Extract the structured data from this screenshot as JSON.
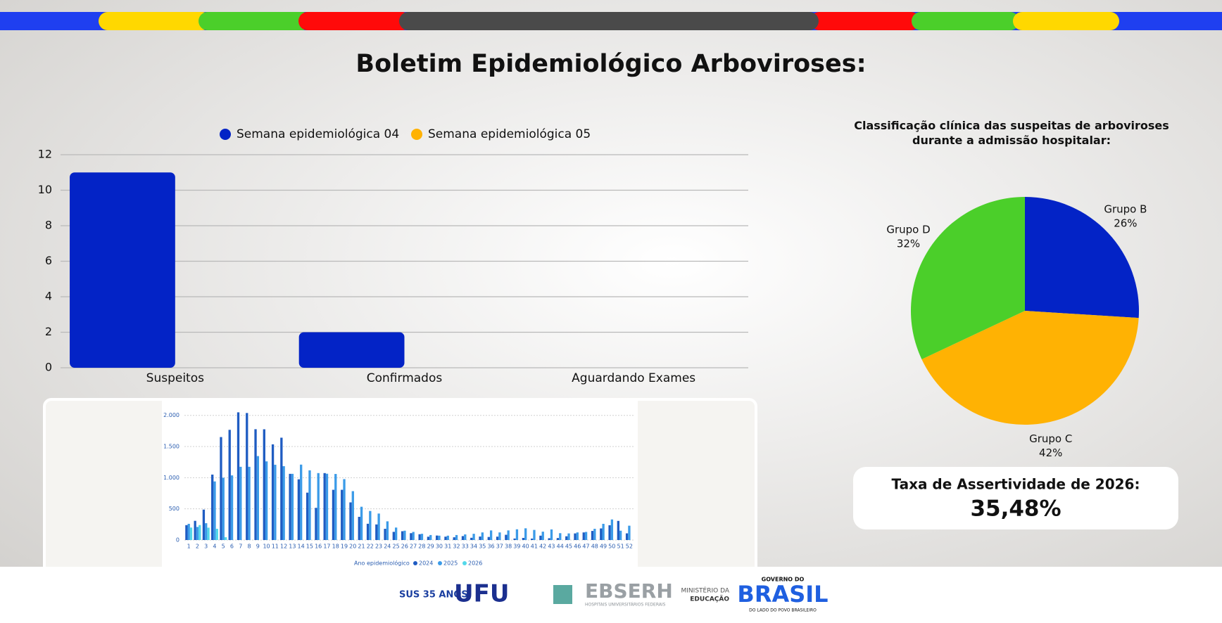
{
  "page": {
    "title": "Boletim Epidemiológico Arboviroses:",
    "card_label": "Taxa de Assertividade de 2026:",
    "card_value": "35,48%"
  },
  "chart_data": [
    {
      "type": "bar",
      "categories": [
        "Suspeitos",
        "Confirmados",
        "Aguardando Exames"
      ],
      "series": [
        {
          "name": "Semana epidemiológica 04",
          "color": "#0323c6",
          "values": [
            11,
            2,
            0
          ]
        },
        {
          "name": "Semana epidemiológica 05",
          "color": "#ffb203",
          "values": [
            0,
            0,
            0
          ]
        }
      ],
      "ylim": [
        0,
        12
      ],
      "yticks": [
        0,
        2,
        4,
        6,
        8,
        10,
        12
      ],
      "grid": true,
      "legend": "top"
    },
    {
      "type": "pie",
      "title": "Classificação clínica das suspeitas de arboviroses durante a admissão hospitalar:",
      "categories": [
        "Grupo B",
        "Grupo C",
        "Grupo D"
      ],
      "values": [
        26,
        42,
        32
      ],
      "value_labels": [
        "26%",
        "42%",
        "32%"
      ],
      "colors": [
        "#0323c6",
        "#ffb203",
        "#4bcf2a"
      ]
    },
    {
      "type": "bar",
      "legend_title": "Ano epidemiológico",
      "categories": [
        1,
        2,
        3,
        4,
        5,
        6,
        7,
        8,
        9,
        10,
        11,
        12,
        13,
        14,
        15,
        16,
        17,
        18,
        19,
        20,
        21,
        22,
        23,
        24,
        25,
        26,
        27,
        28,
        29,
        30,
        31,
        32,
        33,
        34,
        35,
        36,
        37,
        38,
        39,
        40,
        41,
        42,
        43,
        44,
        45,
        46,
        47,
        48,
        49,
        50,
        51,
        52
      ],
      "series": [
        {
          "name": "2024",
          "color": "#1f5cc2",
          "values": [
            239,
            308,
            488,
            1050,
            1652,
            1768,
            2049,
            2038,
            1778,
            1777,
            1535,
            1642,
            1062,
            974,
            760,
            516,
            1074,
            806,
            806,
            604,
            372,
            261,
            250,
            180,
            131,
            141,
            110,
            93,
            53,
            72,
            54,
            44,
            63,
            36,
            56,
            49,
            54,
            84,
            24,
            34,
            23,
            70,
            29,
            32,
            60,
            106,
            122,
            146,
            186,
            237,
            307,
            107
          ]
        },
        {
          "name": "2025",
          "color": "#3b9be8",
          "values": [
            260,
            210,
            270,
            940,
            1000,
            1037,
            1175,
            1175,
            1347,
            1262,
            1208,
            1185,
            1062,
            1210,
            1118,
            1074,
            1064,
            1060,
            977,
            784,
            534,
            466,
            425,
            300,
            200,
            150,
            130,
            100,
            80,
            70,
            70,
            80,
            90,
            100,
            122,
            154,
            122,
            154,
            172,
            188,
            162,
            134,
            170,
            110,
            106,
            122,
            130,
            180,
            260,
            330,
            150,
            230
          ]
        },
        {
          "name": "2026",
          "color": "#53d8ea",
          "values": [
            200,
            240,
            198,
            180,
            45,
            null,
            null,
            null,
            null,
            null,
            null,
            null,
            null,
            null,
            null,
            null,
            null,
            null,
            null,
            null,
            null,
            null,
            null,
            null,
            null,
            null,
            null,
            null,
            null,
            null,
            null,
            null,
            null,
            null,
            null,
            null,
            null,
            null,
            null,
            null,
            null,
            null,
            null,
            null,
            null,
            null,
            null,
            null,
            null,
            null,
            null,
            null
          ]
        }
      ],
      "ylim": [
        0,
        2200
      ],
      "yticks": [
        0,
        500,
        {
          "value": 1000,
          "label": "1.000"
        },
        {
          "value": 1500,
          "label": "1.500"
        },
        {
          "value": 2000,
          "label": "2.000"
        }
      ],
      "grid": true,
      "legend": "bottom"
    }
  ],
  "footer": {
    "logos": [
      "SUS 35 ANOS",
      "UFU",
      "EBSERH",
      "HOSPITAIS UNIVERSITÁRIOS FEDERAIS",
      "MINISTÉRIO DA",
      "EDUCAÇÃO",
      "GOVERNO DO",
      "BRASIL",
      "DO LADO DO POVO BRASILEIRO"
    ]
  }
}
